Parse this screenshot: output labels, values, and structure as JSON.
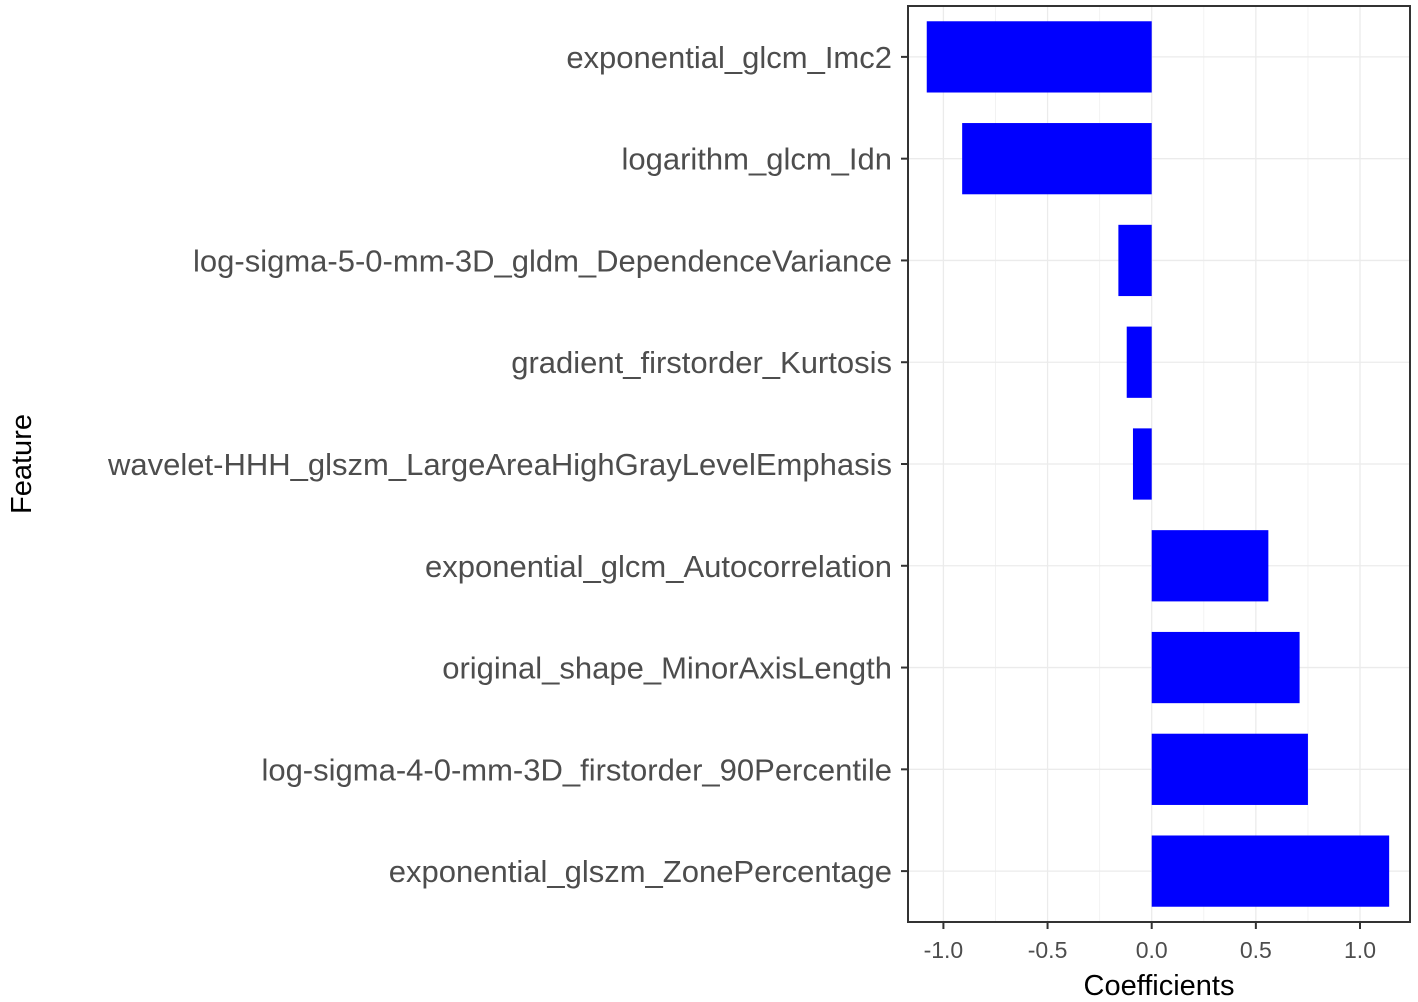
{
  "chart_data": {
    "type": "bar",
    "orientation": "horizontal",
    "title": "",
    "xlabel": "Coefficients",
    "ylabel": "Feature",
    "xlim": [
      -1.17,
      1.24
    ],
    "x_ticks": [
      -1.0,
      -0.5,
      0.0,
      0.5,
      1.0
    ],
    "x_tick_labels": [
      "-1.0",
      "-0.5",
      "0.0",
      "0.5",
      "1.0"
    ],
    "categories": [
      "exponential_glcm_Imc2",
      "logarithm_glcm_Idn",
      "log-sigma-5-0-mm-3D_gldm_DependenceVariance",
      "gradient_firstorder_Kurtosis",
      "wavelet-HHH_glszm_LargeAreaHighGrayLevelEmphasis",
      "exponential_glcm_Autocorrelation",
      "original_shape_MinorAxisLength",
      "log-sigma-4-0-mm-3D_firstorder_90Percentile",
      "exponential_glszm_ZonePercentage"
    ],
    "values": [
      -1.08,
      -0.91,
      -0.16,
      -0.12,
      -0.09,
      0.56,
      0.71,
      0.75,
      1.14
    ],
    "bar_color": "#0000ff",
    "grid": true,
    "legend": "none"
  }
}
